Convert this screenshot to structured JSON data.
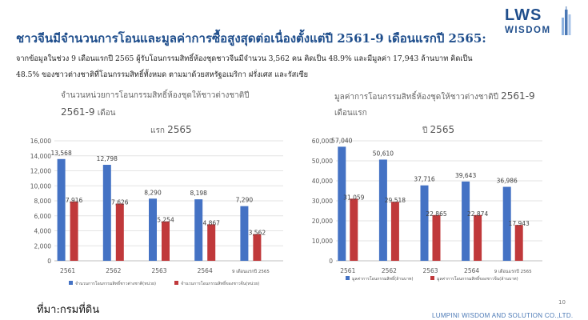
{
  "header": {
    "title": "ชาวจีนมีจำนวนการโอนและมูลค่าการซื้อสูงสุดต่อเนื่องตั้งแต่ปี 2561-9 เดือนแรกปี 2565:",
    "lead_line1": "จากข้อมูลในช่วง 9 เดือนแรกปี 2565 ผู้รับโอนกรรมสิทธิ์ห้องชุดชาวจีนมีจำนวน 3,562 คน คิดเป็น 48.9% และมีมูลค่า 17,943 ล้านบาท คิดเป็น",
    "lead_line2": "48.5% ของชาวต่างชาติที่โอนกรรมสิทธิ์ทั้งหมด ตามมาด้วยสหรัฐอเมริกา ฝรั่งเศส และรัสเซีย"
  },
  "logo": {
    "line1": "LWS",
    "line2": "WISDOM"
  },
  "colors": {
    "blue": "#4472c4",
    "red": "#c0393b",
    "title": "#1f4e8c"
  },
  "chart_data": [
    {
      "type": "bar",
      "title_line1": "จำนวนหน่วยการโอนกรรมสิทธิ์ห้องชุดให้ชาวต่างชาติปี",
      "title_num1": "2561-9",
      "title_word1": "เดือน",
      "title_line2": "แรก",
      "title_num2": "2565",
      "categories": [
        "2561",
        "2562",
        "2563",
        "2564",
        "9 เดือนแรกปี 2565"
      ],
      "series": [
        {
          "name": "จำนวนการโอนกรรมสิทธิ์ชาวต่างชาติ(หน่วย)",
          "values": [
            13568,
            12798,
            8290,
            8198,
            7290
          ],
          "labels": [
            "13,568",
            "12,798",
            "8,290",
            "8,198",
            "7,290"
          ]
        },
        {
          "name": "จำนวนการโอนกรรมสิทธิ์ของชาวจีน(หน่วย)",
          "values": [
            7916,
            7626,
            5254,
            4867,
            3562
          ],
          "labels": [
            "7,916",
            "7,626",
            "5,254",
            "4,867",
            "3,562"
          ]
        }
      ],
      "ylim": [
        0,
        16000
      ],
      "yticks": [
        "0",
        "2,000",
        "4,000",
        "6,000",
        "8,000",
        "10,000",
        "12,000",
        "14,000",
        "16,000"
      ],
      "grid": true,
      "legend": "bottom"
    },
    {
      "type": "bar",
      "title_line1": "มูลค่าการโอนกรรมสิทธิ์ห้องชุดให้ชาวต่างชาติปี",
      "title_num1": "2561-9",
      "title_word1": "เดือนแรก",
      "title_line2": "ปี",
      "title_num2": "2565",
      "categories": [
        "2561",
        "2562",
        "2563",
        "2564",
        "9 เดือนแรกปี 2565"
      ],
      "series": [
        {
          "name": "มูลค่าการโอนกรรมสิทธิ์(ล้านบาท)",
          "values": [
            57040,
            50610,
            37716,
            39643,
            36986
          ],
          "labels": [
            "57,040",
            "50,610",
            "37,716",
            "39,643",
            "36,986"
          ]
        },
        {
          "name": "มูลค่าการโอนกรรมสิทธิ์ของชาวจีน(ล้านบาท)",
          "values": [
            31059,
            29518,
            22865,
            22874,
            17943
          ],
          "labels": [
            "31,059",
            "29,518",
            "22,865",
            "22,874",
            "17,943"
          ]
        }
      ],
      "ylim": [
        0,
        60000
      ],
      "yticks": [
        "0",
        "10,000",
        "20,000",
        "30,000",
        "40,000",
        "50,000",
        "60,000"
      ],
      "grid": true,
      "legend": "bottom"
    }
  ],
  "footer": {
    "source": "ที่มา:กรมที่ดิน",
    "page_number": "10",
    "company": "LUMPINI WISDOM AND SOLUTION CO.,LTD."
  }
}
